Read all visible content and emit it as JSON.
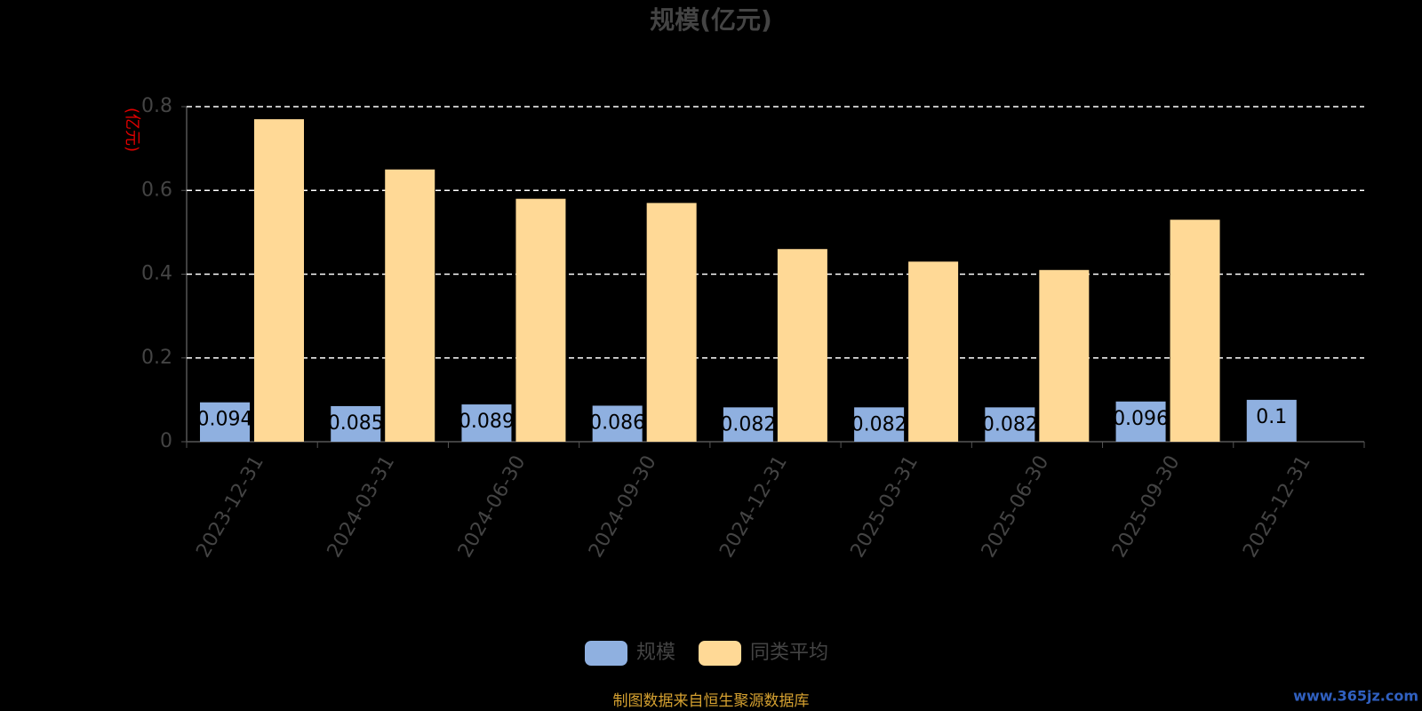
{
  "chart_data": {
    "type": "bar",
    "title": "规模(亿元)",
    "y_axis_label": "(亿元)",
    "categories": [
      "2023-12-31",
      "2024-03-31",
      "2024-06-30",
      "2024-09-30",
      "2024-12-31",
      "2025-03-31",
      "2025-06-30",
      "2025-09-30",
      "2025-12-31"
    ],
    "series": [
      {
        "name": "规模",
        "color": "#8fb0e0",
        "values": [
          0.094,
          0.085,
          0.089,
          0.086,
          0.082,
          0.082,
          0.082,
          0.096,
          0.1
        ]
      },
      {
        "name": "同类平均",
        "color": "#ffd996",
        "values": [
          0.77,
          0.65,
          0.58,
          0.57,
          0.46,
          0.43,
          0.41,
          0.53,
          null
        ]
      }
    ],
    "ylim": [
      0,
      0.8
    ],
    "yticks": [
      0,
      0.2,
      0.4,
      0.6,
      0.8
    ],
    "grid": true,
    "legend": "bottom",
    "source": "制图数据来自恒生聚源数据库",
    "watermark": "www.365jz.com"
  }
}
